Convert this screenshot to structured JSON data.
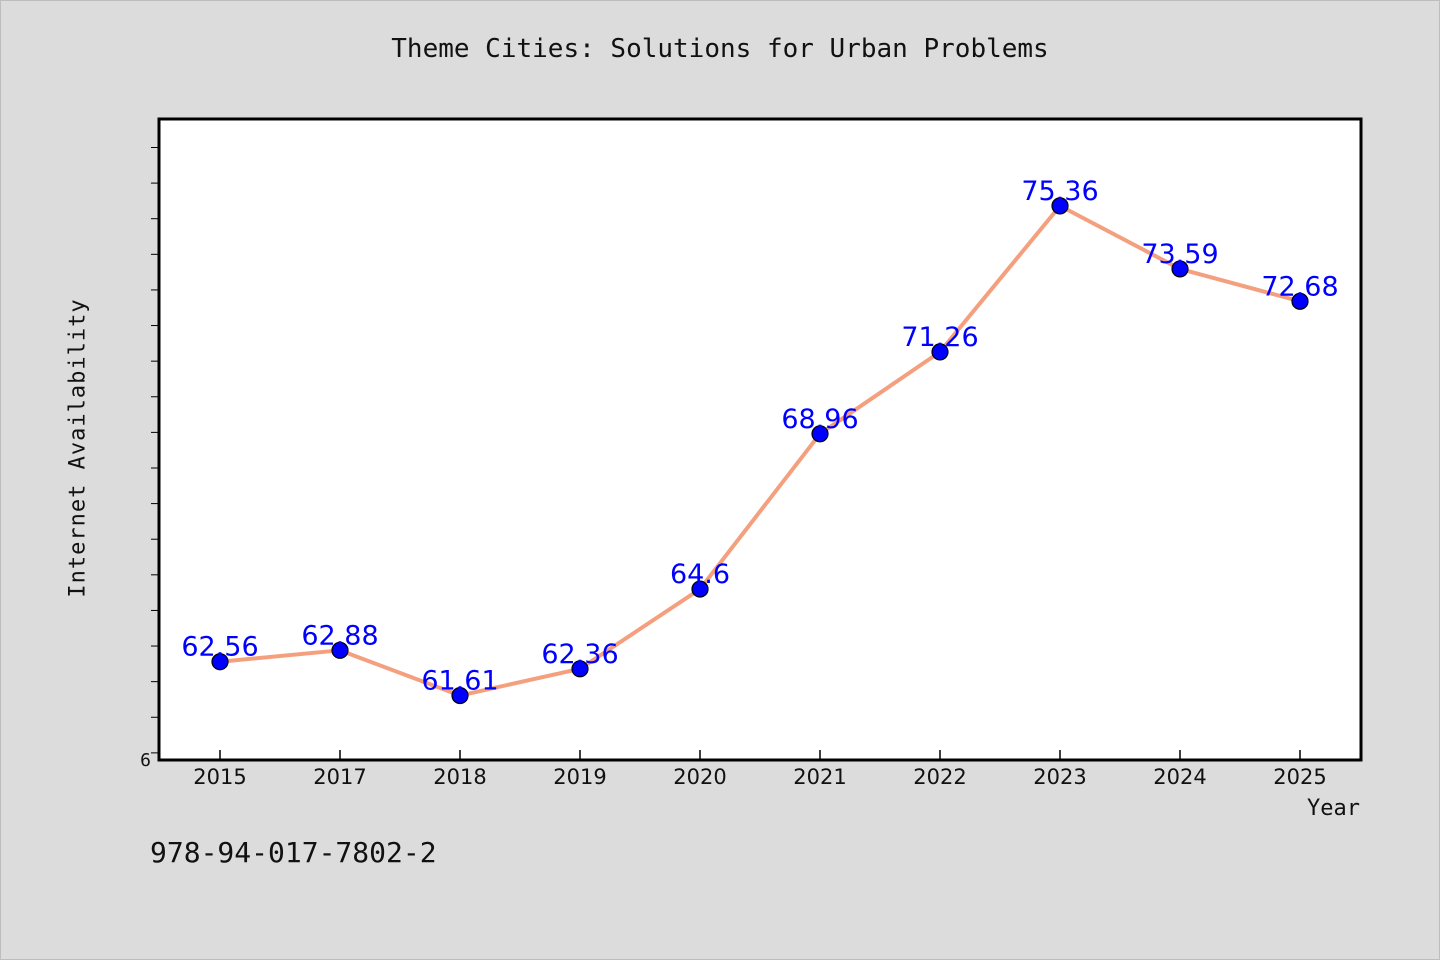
{
  "chart_data": {
    "type": "line",
    "title": "Theme Cities: Solutions for Urban Problems",
    "xlabel": "Year",
    "ylabel": "Internet Availability",
    "categories": [
      "2015",
      "2017",
      "2018",
      "2019",
      "2020",
      "2021",
      "2022",
      "2023",
      "2024",
      "2025"
    ],
    "series": [
      {
        "values": [
          62.56,
          62.88,
          61.61,
          62.36,
          64.6,
          68.96,
          71.26,
          75.36,
          73.59,
          72.68
        ],
        "data_labels": [
          "62.56",
          "62.88",
          "61.61",
          "62.36",
          "64.6",
          "68.96",
          "71.26",
          "75.36",
          "73.59",
          "72.68"
        ]
      }
    ],
    "y_tick_labels": [
      "6"
    ],
    "ylim": [
      59.8,
      77.8
    ],
    "grid": false,
    "colors": {
      "line": "#f4a07e",
      "marker": "#0000ff",
      "label": "#0000ff",
      "background": "#dcdcdc",
      "plot_background": "#ffffff"
    }
  },
  "footer_code": "978-94-017-7802-2"
}
